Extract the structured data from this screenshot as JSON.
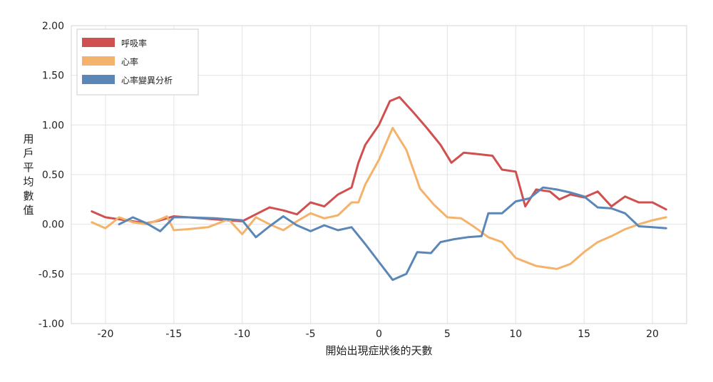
{
  "chart_data": {
    "type": "line",
    "title": "",
    "xlabel": "開始出現症狀後的天數",
    "ylabel": "用戶平均數值",
    "xlim": [
      -22.5,
      22.5
    ],
    "ylim": [
      -1.0,
      2.0
    ],
    "x_ticks": [
      -20,
      -15,
      -10,
      -5,
      0,
      5,
      10,
      15,
      20
    ],
    "x_tick_labels": [
      "-20",
      "-15",
      "-10",
      "-5",
      "0",
      "5",
      "10",
      "15",
      "20"
    ],
    "y_ticks": [
      -1.0,
      -0.5,
      0.0,
      0.5,
      1.0,
      1.5,
      2.0
    ],
    "y_tick_labels": [
      "-1.00",
      "-0.50",
      "0.00",
      "0.50",
      "1.00",
      "1.50",
      "2.00"
    ],
    "grid": true,
    "legend_position": "top-left",
    "series": [
      {
        "name": "呼吸率",
        "color": "#d0504f",
        "points": [
          [
            -21,
            0.13
          ],
          [
            -20,
            0.07
          ],
          [
            -19,
            0.05
          ],
          [
            -18,
            0.03
          ],
          [
            -17,
            0.01
          ],
          [
            -16,
            0.04
          ],
          [
            -15,
            0.08
          ],
          [
            -14,
            0.07
          ],
          [
            -13,
            0.06
          ],
          [
            -12,
            0.05
          ],
          [
            -11,
            0.04
          ],
          [
            -10,
            0.03
          ],
          [
            -9,
            0.1
          ],
          [
            -8,
            0.17
          ],
          [
            -7,
            0.14
          ],
          [
            -6,
            0.1
          ],
          [
            -5,
            0.22
          ],
          [
            -4,
            0.18
          ],
          [
            -3,
            0.3
          ],
          [
            -2,
            0.37
          ],
          [
            -1.5,
            0.62
          ],
          [
            -1,
            0.8
          ],
          [
            0,
            1.0
          ],
          [
            0.8,
            1.24
          ],
          [
            1.5,
            1.28
          ],
          [
            2.5,
            1.13
          ],
          [
            3.5,
            0.97
          ],
          [
            4.5,
            0.8
          ],
          [
            5.3,
            0.62
          ],
          [
            6.2,
            0.72
          ],
          [
            7,
            0.71
          ],
          [
            8.3,
            0.69
          ],
          [
            9,
            0.55
          ],
          [
            10,
            0.53
          ],
          [
            10.7,
            0.18
          ],
          [
            11.5,
            0.35
          ],
          [
            12.5,
            0.33
          ],
          [
            13.2,
            0.25
          ],
          [
            14,
            0.3
          ],
          [
            15,
            0.27
          ],
          [
            16,
            0.33
          ],
          [
            17,
            0.18
          ],
          [
            18,
            0.28
          ],
          [
            19,
            0.22
          ],
          [
            20,
            0.22
          ],
          [
            21,
            0.15
          ]
        ]
      },
      {
        "name": "心率",
        "color": "#f5b26b",
        "points": [
          [
            -21,
            0.02
          ],
          [
            -20,
            -0.04
          ],
          [
            -19,
            0.07
          ],
          [
            -18,
            0.02
          ],
          [
            -17,
            0.0
          ],
          [
            -16,
            0.05
          ],
          [
            -15.5,
            0.08
          ],
          [
            -15,
            -0.06
          ],
          [
            -14,
            -0.05
          ],
          [
            -12.5,
            -0.03
          ],
          [
            -11,
            0.05
          ],
          [
            -10,
            -0.1
          ],
          [
            -9,
            0.07
          ],
          [
            -8,
            0.0
          ],
          [
            -7,
            -0.06
          ],
          [
            -6,
            0.03
          ],
          [
            -5,
            0.11
          ],
          [
            -4,
            0.06
          ],
          [
            -3,
            0.09
          ],
          [
            -2,
            0.22
          ],
          [
            -1.5,
            0.22
          ],
          [
            -1,
            0.4
          ],
          [
            0,
            0.65
          ],
          [
            1,
            0.97
          ],
          [
            2,
            0.75
          ],
          [
            3,
            0.36
          ],
          [
            4,
            0.2
          ],
          [
            5,
            0.07
          ],
          [
            6,
            0.06
          ],
          [
            7,
            -0.03
          ],
          [
            8,
            -0.13
          ],
          [
            9,
            -0.18
          ],
          [
            10,
            -0.34
          ],
          [
            11.5,
            -0.42
          ],
          [
            13,
            -0.45
          ],
          [
            14,
            -0.4
          ],
          [
            15,
            -0.28
          ],
          [
            16,
            -0.18
          ],
          [
            17,
            -0.12
          ],
          [
            18,
            -0.05
          ],
          [
            19,
            0.0
          ],
          [
            20,
            0.04
          ],
          [
            21,
            0.07
          ]
        ]
      },
      {
        "name": "心率變異分析",
        "color": "#5a87b7",
        "points": [
          [
            -19,
            0.0
          ],
          [
            -18,
            0.07
          ],
          [
            -17,
            0.01
          ],
          [
            -16,
            -0.07
          ],
          [
            -15,
            0.07
          ],
          [
            -14,
            0.07
          ],
          [
            -12,
            0.06
          ],
          [
            -10,
            0.04
          ],
          [
            -9,
            -0.13
          ],
          [
            -8,
            -0.02
          ],
          [
            -7,
            0.08
          ],
          [
            -6,
            -0.01
          ],
          [
            -5,
            -0.07
          ],
          [
            -4,
            -0.01
          ],
          [
            -3,
            -0.06
          ],
          [
            -2,
            -0.03
          ],
          [
            -1,
            -0.2
          ],
          [
            0,
            -0.38
          ],
          [
            1,
            -0.56
          ],
          [
            2,
            -0.5
          ],
          [
            2.8,
            -0.28
          ],
          [
            3.8,
            -0.29
          ],
          [
            4.5,
            -0.18
          ],
          [
            5.5,
            -0.15
          ],
          [
            6.5,
            -0.13
          ],
          [
            7.5,
            -0.12
          ],
          [
            8,
            0.11
          ],
          [
            9,
            0.11
          ],
          [
            10,
            0.23
          ],
          [
            11,
            0.26
          ],
          [
            12,
            0.37
          ],
          [
            13,
            0.35
          ],
          [
            14,
            0.32
          ],
          [
            15,
            0.28
          ],
          [
            16,
            0.17
          ],
          [
            17,
            0.16
          ],
          [
            18,
            0.11
          ],
          [
            19,
            -0.02
          ],
          [
            20,
            -0.03
          ],
          [
            21,
            -0.04
          ]
        ]
      }
    ]
  }
}
